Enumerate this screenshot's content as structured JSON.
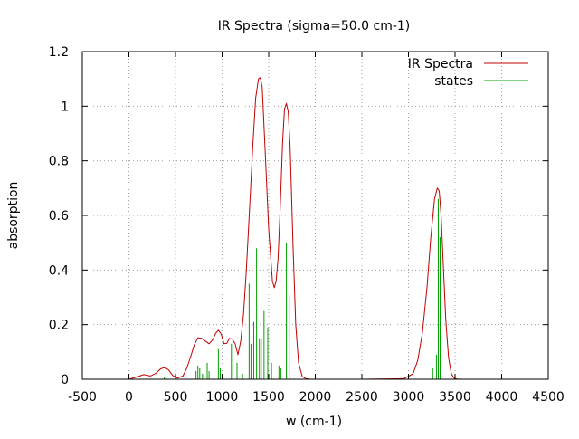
{
  "chart_data": {
    "type": "line",
    "title": "IR Spectra (sigma=50.0 cm-1)",
    "xlabel": "w (cm-1)",
    "ylabel": "absorption",
    "xlim": [
      -500,
      4500
    ],
    "ylim": [
      0,
      1.2
    ],
    "xticks": [
      -500,
      0,
      500,
      1000,
      1500,
      2000,
      2500,
      3000,
      3500,
      4000,
      4500
    ],
    "yticks": [
      0,
      0.2,
      0.4,
      0.6,
      0.8,
      1,
      1.2
    ],
    "grid": true,
    "legend_position": "top-right",
    "series": [
      {
        "name": "IR Spectra",
        "kind": "line",
        "color": "#c00000",
        "x": [
          0,
          80,
          160,
          230,
          290,
          340,
          375,
          420,
          470,
          520,
          580,
          620,
          660,
          700,
          740,
          780,
          820,
          860,
          900,
          930,
          960,
          990,
          1020,
          1050,
          1080,
          1110,
          1140,
          1170,
          1200,
          1230,
          1260,
          1300,
          1330,
          1360,
          1390,
          1410,
          1430,
          1460,
          1500,
          1540,
          1560,
          1580,
          1600,
          1620,
          1650,
          1670,
          1690,
          1710,
          1730,
          1760,
          1790,
          1820,
          1860,
          1900,
          1950,
          2000,
          2500,
          2950,
          3050,
          3100,
          3150,
          3200,
          3240,
          3280,
          3310,
          3330,
          3350,
          3370,
          3400,
          3430,
          3460,
          3490,
          3520,
          3580,
          3700,
          4300
        ],
        "y": [
          0,
          0.008,
          0.017,
          0.012,
          0.022,
          0.038,
          0.042,
          0.036,
          0.014,
          0.004,
          0.012,
          0.04,
          0.08,
          0.125,
          0.152,
          0.15,
          0.14,
          0.13,
          0.145,
          0.168,
          0.18,
          0.165,
          0.13,
          0.132,
          0.15,
          0.147,
          0.13,
          0.09,
          0.14,
          0.24,
          0.4,
          0.66,
          0.86,
          1.03,
          1.1,
          1.105,
          1.07,
          0.85,
          0.55,
          0.36,
          0.335,
          0.36,
          0.44,
          0.6,
          0.87,
          0.99,
          1.01,
          0.98,
          0.85,
          0.5,
          0.2,
          0.06,
          0.01,
          0.002,
          0,
          0,
          0,
          0.002,
          0.02,
          0.07,
          0.17,
          0.34,
          0.52,
          0.66,
          0.7,
          0.69,
          0.6,
          0.45,
          0.22,
          0.08,
          0.02,
          0.004,
          0.001,
          0,
          0,
          0
        ]
      },
      {
        "name": "states",
        "kind": "sticks",
        "color": "#00a000",
        "x": [
          380,
          720,
          740,
          760,
          790,
          840,
          860,
          960,
          980,
          1000,
          1100,
          1160,
          1220,
          1290,
          1310,
          1340,
          1370,
          1400,
          1420,
          1450,
          1490,
          1530,
          1610,
          1630,
          1690,
          1720,
          3260,
          3300,
          3320,
          3340
        ],
        "y": [
          0.01,
          0.03,
          0.05,
          0.04,
          0.02,
          0.06,
          0.03,
          0.11,
          0.04,
          0.02,
          0.13,
          0.06,
          0.02,
          0.35,
          0.13,
          0.21,
          0.48,
          0.15,
          0.15,
          0.25,
          0.19,
          0.06,
          0.05,
          0.04,
          0.5,
          0.31,
          0.04,
          0.09,
          0.66,
          0.52
        ]
      }
    ]
  }
}
